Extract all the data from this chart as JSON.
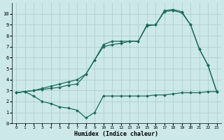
{
  "background_color": "#cce8e8",
  "grid_color": "#b0d0d0",
  "line_color": "#1a6b5a",
  "xlabel": "Humidex (Indice chaleur)",
  "xlim": [
    -0.5,
    23.5
  ],
  "ylim": [
    0,
    11
  ],
  "xticks": [
    0,
    1,
    2,
    3,
    4,
    5,
    6,
    7,
    8,
    9,
    10,
    11,
    12,
    13,
    14,
    15,
    16,
    17,
    18,
    19,
    20,
    21,
    22,
    23
  ],
  "yticks": [
    0,
    1,
    2,
    3,
    4,
    5,
    6,
    7,
    8,
    9,
    10
  ],
  "line1_x": [
    0,
    1,
    2,
    3,
    4,
    5,
    6,
    7,
    8,
    9,
    10,
    11,
    12,
    13,
    14,
    15,
    16,
    17,
    18,
    19,
    20,
    21,
    22,
    23
  ],
  "line1_y": [
    2.8,
    2.9,
    2.5,
    2.0,
    1.8,
    1.5,
    1.4,
    1.2,
    0.5,
    1.0,
    2.5,
    2.5,
    2.5,
    2.5,
    2.5,
    2.5,
    2.6,
    2.6,
    2.7,
    2.8,
    2.8,
    2.8,
    2.9,
    2.9
  ],
  "line2_x": [
    0,
    1,
    2,
    3,
    4,
    5,
    6,
    7,
    8,
    9,
    10,
    11,
    12,
    13,
    14,
    15,
    16,
    17,
    18,
    19,
    20,
    21,
    22,
    23
  ],
  "line2_y": [
    2.8,
    2.9,
    3.0,
    3.1,
    3.2,
    3.3,
    3.5,
    3.6,
    4.5,
    5.8,
    7.0,
    7.2,
    7.3,
    7.5,
    7.5,
    9.0,
    9.0,
    10.2,
    10.3,
    10.1,
    9.0,
    6.8,
    5.3,
    2.9
  ],
  "line3_x": [
    0,
    1,
    2,
    3,
    4,
    5,
    6,
    7,
    8,
    9,
    10,
    11,
    12,
    13,
    14,
    15,
    16,
    17,
    18,
    19,
    20,
    21,
    22,
    23
  ],
  "line3_y": [
    2.8,
    2.9,
    3.0,
    3.2,
    3.4,
    3.6,
    3.8,
    4.0,
    4.5,
    5.8,
    7.2,
    7.5,
    7.5,
    7.5,
    7.5,
    8.9,
    9.0,
    10.3,
    10.4,
    10.2,
    9.0,
    6.8,
    5.3,
    2.9
  ]
}
